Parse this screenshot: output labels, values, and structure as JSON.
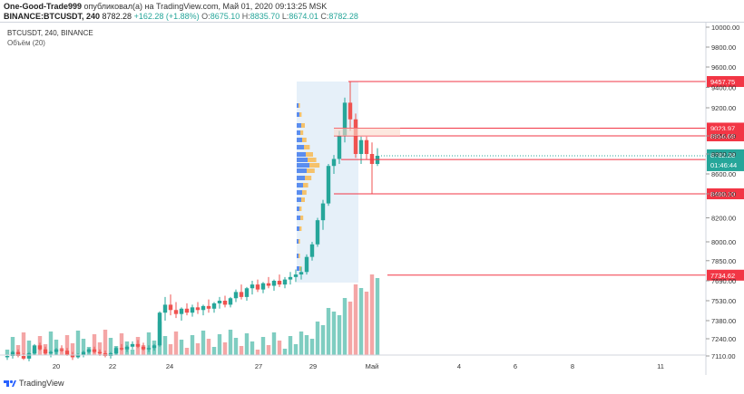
{
  "header": {
    "publisher": "One-Good-Trade999",
    "published_text": "опубликовал(а) на TradingView.com, Май 01, 2020 09:13:25 MSK",
    "symbol": "BINANCE:BTCUSDT, 240",
    "last": "8782.28",
    "change": "+162.28 (+1.88%)",
    "o_label": "O:",
    "o_value": "8675.10",
    "h_label": "H:",
    "h_value": "8835.70",
    "l_label": "L:",
    "l_value": "8674.01",
    "c_label": "C:",
    "c_value": "8782.28"
  },
  "legend": {
    "title": "BTCUSDT, 240, BINANCE",
    "indicator": "Объём (20)"
  },
  "footer": {
    "brand": "TradingView"
  },
  "countdown": "01:46:44",
  "colors": {
    "up": "#26a69a",
    "down": "#ef5350",
    "line": "#f23645",
    "upVol": "#7fcdc1",
    "downVol": "#f4a6a6",
    "profile": "#dbe9f7"
  },
  "chart_data": {
    "type": "candlestick",
    "y_ticks": [
      "10000.00",
      "9800.00",
      "9600.00",
      "9400.00",
      "9200.00",
      "8956.69",
      "8800.00",
      "8600.00",
      "8400.00",
      "8200.00",
      "8000.00",
      "7850.00",
      "7690.00",
      "7530.00",
      "7380.00",
      "7240.00",
      "7110.00"
    ],
    "x_ticks": [
      "20",
      "22",
      "24",
      "27",
      "29",
      "Май",
      "4",
      "6",
      "8",
      "11"
    ],
    "price_lines": [
      {
        "value": "9457.75",
        "price": 9457.75
      },
      {
        "value": "9023.97",
        "price": 9023.97
      },
      {
        "value": "8956.69",
        "price": 8956.69
      },
      {
        "value": "8743.98",
        "price": 8743.98
      },
      {
        "value": "8400.10",
        "price": 8400.1
      },
      {
        "value": "7734.62",
        "price": 7734.62
      }
    ],
    "last_price": {
      "value": "8782.28",
      "price": 8782.28
    },
    "candles_approx": [
      [
        7100,
        7120,
        7080,
        7110
      ],
      [
        7110,
        7150,
        7090,
        7140
      ],
      [
        7140,
        7160,
        7100,
        7110
      ],
      [
        7110,
        7130,
        7080,
        7090
      ],
      [
        7090,
        7140,
        7070,
        7130
      ],
      [
        7130,
        7200,
        7120,
        7190
      ],
      [
        7190,
        7210,
        7150,
        7160
      ],
      [
        7160,
        7180,
        7120,
        7130
      ],
      [
        7130,
        7150,
        7100,
        7140
      ],
      [
        7140,
        7170,
        7120,
        7160
      ],
      [
        7160,
        7190,
        7140,
        7150
      ],
      [
        7150,
        7170,
        7110,
        7120
      ],
      [
        7120,
        7140,
        7080,
        7100
      ],
      [
        7100,
        7130,
        7090,
        7120
      ],
      [
        7120,
        7150,
        7100,
        7140
      ],
      [
        7140,
        7170,
        7130,
        7160
      ],
      [
        7160,
        7180,
        7130,
        7140
      ],
      [
        7140,
        7160,
        7110,
        7130
      ],
      [
        7130,
        7150,
        7100,
        7110
      ],
      [
        7110,
        7140,
        7090,
        7130
      ],
      [
        7130,
        7180,
        7120,
        7170
      ],
      [
        7170,
        7200,
        7150,
        7160
      ],
      [
        7160,
        7190,
        7140,
        7180
      ],
      [
        7180,
        7220,
        7160,
        7200
      ],
      [
        7200,
        7230,
        7170,
        7180
      ],
      [
        7180,
        7210,
        7150,
        7160
      ],
      [
        7160,
        7190,
        7140,
        7170
      ],
      [
        7170,
        7200,
        7150,
        7190
      ],
      [
        7190,
        7450,
        7180,
        7440
      ],
      [
        7440,
        7560,
        7380,
        7500
      ],
      [
        7500,
        7580,
        7420,
        7460
      ],
      [
        7460,
        7520,
        7400,
        7430
      ],
      [
        7430,
        7480,
        7380,
        7470
      ],
      [
        7470,
        7510,
        7420,
        7440
      ],
      [
        7440,
        7500,
        7410,
        7480
      ],
      [
        7480,
        7520,
        7430,
        7460
      ],
      [
        7460,
        7500,
        7420,
        7490
      ],
      [
        7490,
        7540,
        7440,
        7470
      ],
      [
        7470,
        7520,
        7440,
        7510
      ],
      [
        7510,
        7560,
        7470,
        7530
      ],
      [
        7530,
        7570,
        7480,
        7500
      ],
      [
        7500,
        7560,
        7480,
        7550
      ],
      [
        7550,
        7620,
        7520,
        7600
      ],
      [
        7600,
        7660,
        7540,
        7560
      ],
      [
        7560,
        7640,
        7530,
        7630
      ],
      [
        7630,
        7690,
        7580,
        7660
      ],
      [
        7660,
        7700,
        7600,
        7620
      ],
      [
        7620,
        7680,
        7590,
        7670
      ],
      [
        7670,
        7720,
        7630,
        7650
      ],
      [
        7650,
        7700,
        7610,
        7690
      ],
      [
        7690,
        7740,
        7640,
        7660
      ],
      [
        7660,
        7720,
        7630,
        7700
      ],
      [
        7700,
        7760,
        7660,
        7720
      ],
      [
        7720,
        7780,
        7680,
        7740
      ],
      [
        7740,
        7800,
        7700,
        7760
      ],
      [
        7760,
        7900,
        7740,
        7880
      ],
      [
        7880,
        8000,
        7850,
        7980
      ],
      [
        7980,
        8200,
        7960,
        8180
      ],
      [
        8180,
        8350,
        8100,
        8320
      ],
      [
        8320,
        8700,
        8300,
        8680
      ],
      [
        8680,
        8790,
        8600,
        8750
      ],
      [
        8750,
        9000,
        8700,
        8960
      ],
      [
        8960,
        9300,
        8900,
        9250
      ],
      [
        9250,
        9457,
        9000,
        9100
      ],
      [
        9100,
        9150,
        8760,
        8800
      ],
      [
        8800,
        8950,
        8700,
        8920
      ],
      [
        8920,
        8950,
        8750,
        8800
      ],
      [
        8800,
        8900,
        8400,
        8700
      ],
      [
        8700,
        8850,
        8680,
        8782
      ]
    ]
  }
}
